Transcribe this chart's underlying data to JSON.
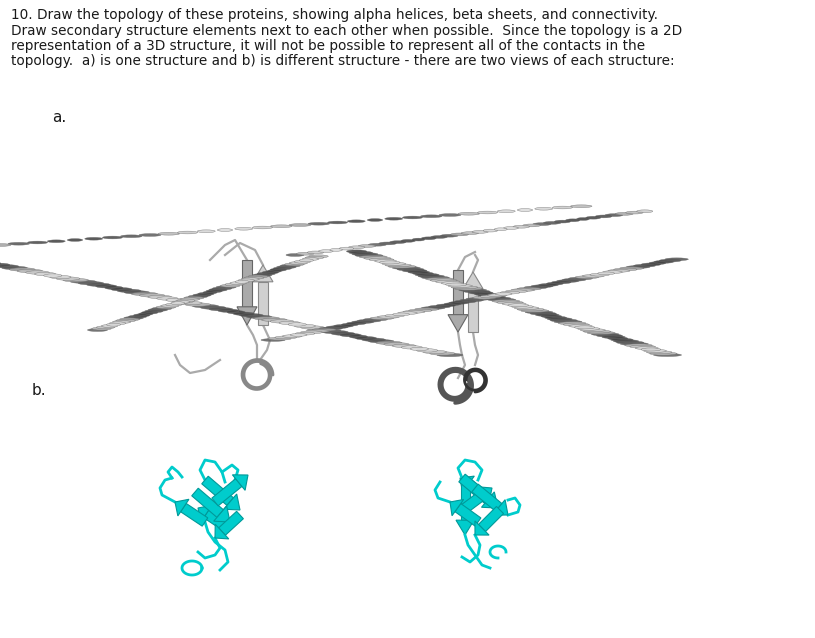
{
  "title_lines": [
    "10. Draw the topology of these proteins, showing alpha helices, beta sheets, and connectivity.",
    "Draw secondary structure elements next to each other when possible.  Since the topology is a 2D",
    "representation of a 3D structure, it will not be possible to represent all of the contacts in the",
    "topology.  a) is one structure and b) is different structure - there are two views of each structure:"
  ],
  "label_a": "a.",
  "label_b": "b.",
  "bg_color": "#ffffff",
  "text_color": "#1a1a1a",
  "text_fontsize": 9.8,
  "label_fontsize": 11,
  "figure_width": 8.15,
  "figure_height": 6.38,
  "protein_a_helix_color": "#aaaaaa",
  "protein_a_helix_dark": "#777777",
  "protein_a_helix_light": "#d0d0d0",
  "protein_a_strand_color": "#bbbbbb",
  "protein_a_loop_color": "#888888",
  "protein_b_color": "#00cccc",
  "protein_b_dark": "#009999"
}
